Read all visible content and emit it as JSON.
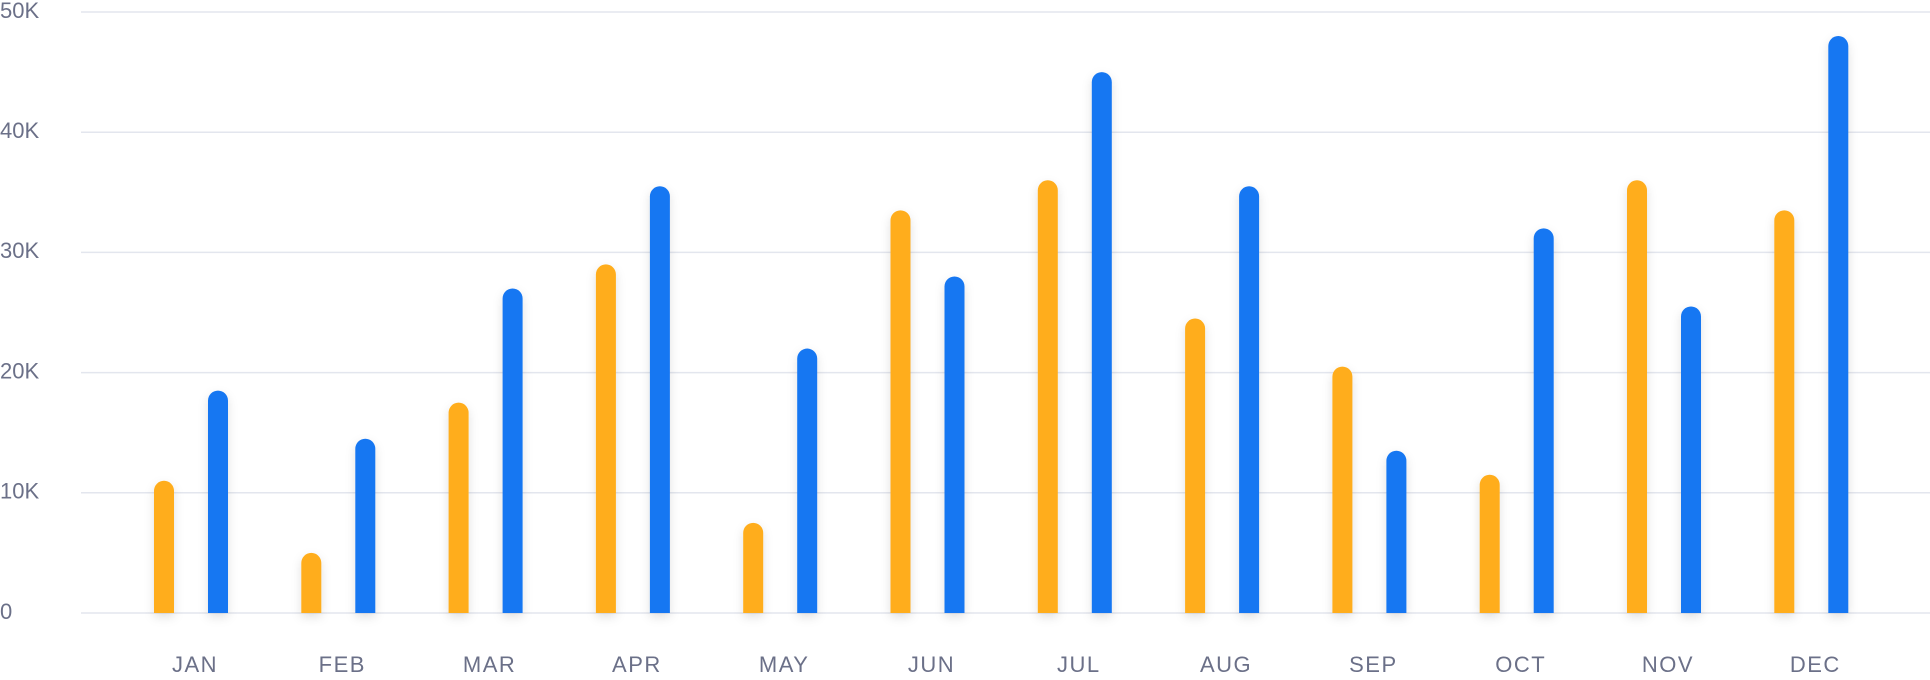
{
  "chart_data": {
    "type": "bar",
    "categories": [
      "JAN",
      "FEB",
      "MAR",
      "APR",
      "MAY",
      "JUN",
      "JUL",
      "AUG",
      "SEP",
      "OCT",
      "NOV",
      "DEC"
    ],
    "series": [
      {
        "color": "#ffad1a",
        "values": [
          11000,
          5000,
          17500,
          29000,
          7500,
          33500,
          36000,
          24500,
          20500,
          11500,
          36000,
          33500
        ]
      },
      {
        "color": "#1877f2",
        "values": [
          18500,
          14500,
          27000,
          35500,
          22000,
          28000,
          45000,
          35500,
          13500,
          32000,
          25500,
          48000
        ]
      }
    ],
    "ylim": [
      0,
      50000
    ],
    "yticks": [
      0,
      {
        "value": 10000,
        "label": "10K"
      },
      {
        "value": 20000,
        "label": "20K"
      },
      {
        "value": 30000,
        "label": "30K"
      },
      {
        "value": 40000,
        "label": "40K"
      },
      {
        "value": 50000,
        "label": "50K"
      }
    ],
    "grid": true
  }
}
